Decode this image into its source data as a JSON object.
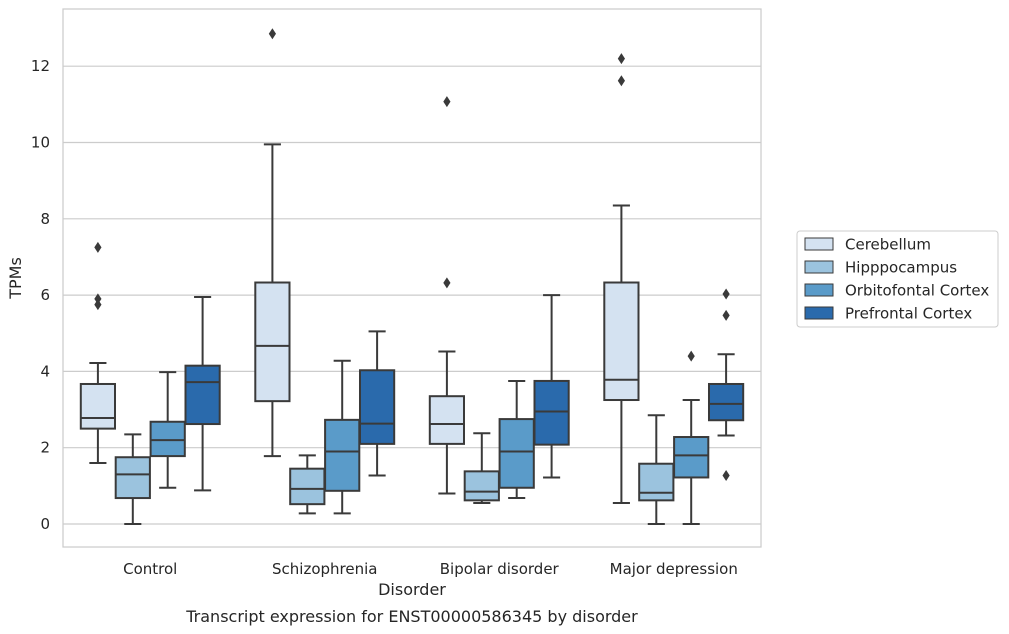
{
  "chart_data": {
    "type": "box",
    "xlabel": "Disorder",
    "ylabel": "TPMs",
    "caption": "Transcript expression for ENST00000586345 by disorder",
    "ylim": [
      -0.6,
      13.5
    ],
    "yticks": [
      "0",
      "2",
      "4",
      "6",
      "8",
      "10",
      "12"
    ],
    "grid": "horizontal",
    "legend_position": "right",
    "categories": [
      "Control",
      "Schizophrenia",
      "Bipolar disorder",
      "Major depression"
    ],
    "series": [
      {
        "name": "Cerebellum",
        "color": "#d4e2f1",
        "boxes": [
          {
            "whisker_low": 1.6,
            "q1": 2.5,
            "median": 2.78,
            "q3": 3.67,
            "whisker_high": 4.22,
            "outliers": [
              5.75,
              5.9,
              7.25
            ]
          },
          {
            "whisker_low": 1.78,
            "q1": 3.22,
            "median": 4.67,
            "q3": 6.33,
            "whisker_high": 9.95,
            "outliers": [
              12.85
            ]
          },
          {
            "whisker_low": 0.8,
            "q1": 2.1,
            "median": 2.62,
            "q3": 3.35,
            "whisker_high": 4.52,
            "outliers": [
              6.32,
              11.07
            ]
          },
          {
            "whisker_low": 0.55,
            "q1": 3.25,
            "median": 3.78,
            "q3": 6.33,
            "whisker_high": 8.35,
            "outliers": [
              11.62,
              12.2
            ]
          }
        ]
      },
      {
        "name": "Hipppocampus",
        "color": "#9bc3de",
        "boxes": [
          {
            "whisker_low": 0.0,
            "q1": 0.68,
            "median": 1.3,
            "q3": 1.75,
            "whisker_high": 2.35,
            "outliers": []
          },
          {
            "whisker_low": 0.28,
            "q1": 0.52,
            "median": 0.92,
            "q3": 1.45,
            "whisker_high": 1.8,
            "outliers": []
          },
          {
            "whisker_low": 0.55,
            "q1": 0.62,
            "median": 0.85,
            "q3": 1.38,
            "whisker_high": 2.38,
            "outliers": []
          },
          {
            "whisker_low": 0.0,
            "q1": 0.62,
            "median": 0.82,
            "q3": 1.58,
            "whisker_high": 2.85,
            "outliers": []
          }
        ]
      },
      {
        "name": "Orbitofontal Cortex",
        "color": "#5a9bc9",
        "boxes": [
          {
            "whisker_low": 0.95,
            "q1": 1.78,
            "median": 2.2,
            "q3": 2.68,
            "whisker_high": 3.98,
            "outliers": []
          },
          {
            "whisker_low": 0.28,
            "q1": 0.87,
            "median": 1.9,
            "q3": 2.73,
            "whisker_high": 4.28,
            "outliers": []
          },
          {
            "whisker_low": 0.68,
            "q1": 0.95,
            "median": 1.9,
            "q3": 2.75,
            "whisker_high": 3.75,
            "outliers": []
          },
          {
            "whisker_low": 0.0,
            "q1": 1.22,
            "median": 1.8,
            "q3": 2.28,
            "whisker_high": 3.25,
            "outliers": [
              4.4
            ]
          }
        ]
      },
      {
        "name": "Prefrontal Cortex",
        "color": "#2a6aac",
        "boxes": [
          {
            "whisker_low": 0.88,
            "q1": 2.62,
            "median": 3.72,
            "q3": 4.15,
            "whisker_high": 5.95,
            "outliers": []
          },
          {
            "whisker_low": 1.27,
            "q1": 2.1,
            "median": 2.63,
            "q3": 4.03,
            "whisker_high": 5.05,
            "outliers": []
          },
          {
            "whisker_low": 1.22,
            "q1": 2.08,
            "median": 2.95,
            "q3": 3.75,
            "whisker_high": 6.0,
            "outliers": []
          },
          {
            "whisker_low": 2.32,
            "q1": 2.72,
            "median": 3.15,
            "q3": 3.67,
            "whisker_high": 4.45,
            "outliers": [
              1.27,
              5.47,
              6.03
            ]
          }
        ]
      }
    ]
  }
}
